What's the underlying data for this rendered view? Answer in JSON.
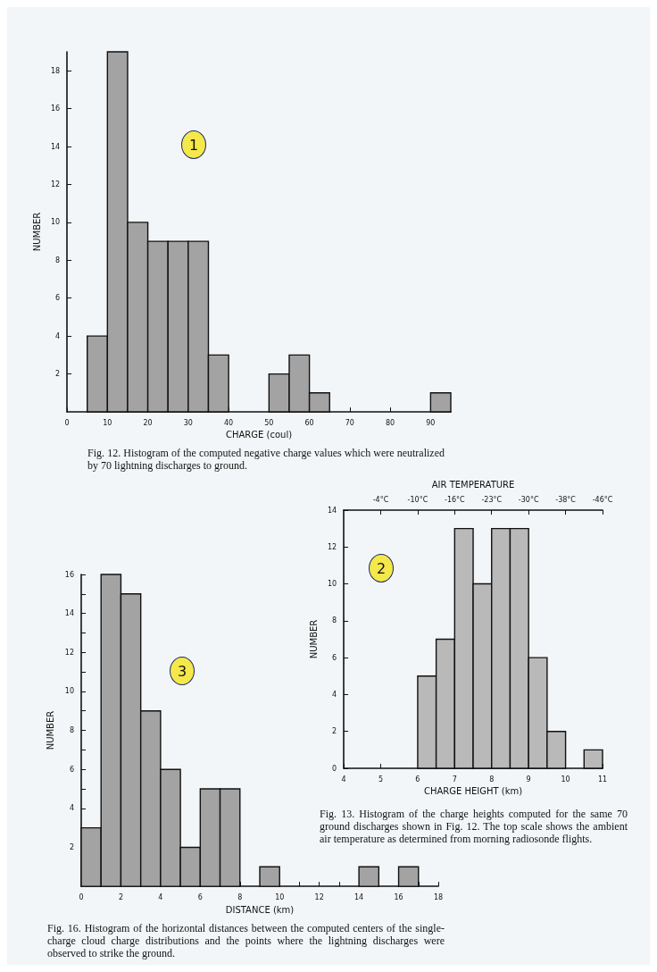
{
  "chart_data": [
    {
      "type": "histogram",
      "xlabel": "CHARGE (coul)",
      "ylabel": "NUMBER",
      "bins": [
        5,
        10,
        15,
        20,
        25,
        30,
        35,
        40,
        45,
        50,
        55,
        60,
        65,
        70,
        75,
        80,
        85,
        90,
        95
      ],
      "values": [
        4,
        19,
        10,
        9,
        9,
        9,
        3,
        0,
        0,
        2,
        3,
        1,
        0,
        0,
        0,
        0,
        0,
        1
      ],
      "color": "#a3a3a3",
      "xlim": [
        0,
        95
      ],
      "xticks": [
        0,
        10,
        20,
        30,
        40,
        50,
        60,
        70,
        80,
        90
      ],
      "ylim": [
        0,
        19
      ],
      "yticks": [
        2,
        4,
        6,
        8,
        10,
        12,
        14,
        16,
        18
      ],
      "grid": false,
      "annotations": [
        "Fig. 12. Histogram of the computed negative charge values which were neutralized by 70 lightning discharges to ground.",
        "1"
      ]
    },
    {
      "type": "histogram",
      "xlabel": "CHARGE HEIGHT (km)",
      "ylabel": "NUMBER",
      "x2label": "AIR TEMPERATURE",
      "bins": [
        6,
        6.5,
        7,
        7.5,
        8,
        8.5,
        9,
        9.5,
        10,
        10.5,
        11
      ],
      "values": [
        5,
        7,
        13,
        10,
        13,
        13,
        6,
        2,
        0,
        1
      ],
      "color": "#b9b9b9",
      "xlim": [
        4,
        11
      ],
      "xticks": [
        4,
        5,
        6,
        7,
        8,
        9,
        10,
        11
      ],
      "ylim": [
        0,
        14
      ],
      "yticks": [
        0,
        2,
        4,
        6,
        8,
        10,
        12,
        14
      ],
      "grid": false,
      "annotations": [
        "Fig. 13. Histogram of the charge heights computed for the same 70 ground discharges shown in Fig. 12. The top scale shows the ambient air temperature as determined from morning radiosonde flights.",
        "2",
        "-4°C",
        "-10°C",
        "-16°C",
        "-23°C",
        "-30°C",
        "-38°C",
        "-46°C"
      ]
    },
    {
      "type": "histogram",
      "xlabel": "DISTANCE (km)",
      "ylabel": "NUMBER",
      "bins": [
        0,
        1,
        2,
        3,
        4,
        5,
        6,
        7,
        8,
        9,
        10,
        11,
        12,
        13,
        14,
        15,
        16,
        17,
        18
      ],
      "values": [
        3,
        16,
        15,
        9,
        6,
        2,
        5,
        5,
        0,
        1,
        0,
        0,
        0,
        0,
        1,
        0,
        1,
        0
      ],
      "color": "#a3a3a3",
      "xlim": [
        0,
        18
      ],
      "xticks": [
        0,
        {
          "value": 1,
          "label": null
        },
        2,
        {
          "value": 3,
          "label": null
        },
        4,
        {
          "value": 5,
          "label": null
        },
        6,
        {
          "value": 7,
          "label": null
        },
        8,
        {
          "value": 9,
          "label": null
        },
        10,
        {
          "value": 11,
          "label": null
        },
        12,
        {
          "value": 13,
          "label": null
        },
        14,
        {
          "value": 15,
          "label": null
        },
        16,
        {
          "value": 17,
          "label": null
        },
        18
      ],
      "ylim": [
        0,
        16
      ],
      "yticks": [
        {
          "value": 1,
          "label": null
        },
        2,
        {
          "value": 3,
          "label": null
        },
        4,
        {
          "value": 5,
          "label": null
        },
        6,
        {
          "value": 7,
          "label": null
        },
        8,
        {
          "value": 9,
          "label": null
        },
        10,
        {
          "value": 11,
          "label": null
        },
        12,
        {
          "value": 13,
          "label": null
        },
        14,
        {
          "value": 15,
          "label": null
        },
        16
      ],
      "grid": false,
      "annotations": [
        "Fig. 16. Histogram of the horizontal distances between the computed centers of the single-charge cloud charge distributions and the points where the lightning discharges were observed to strike the ground.",
        "3"
      ]
    }
  ]
}
